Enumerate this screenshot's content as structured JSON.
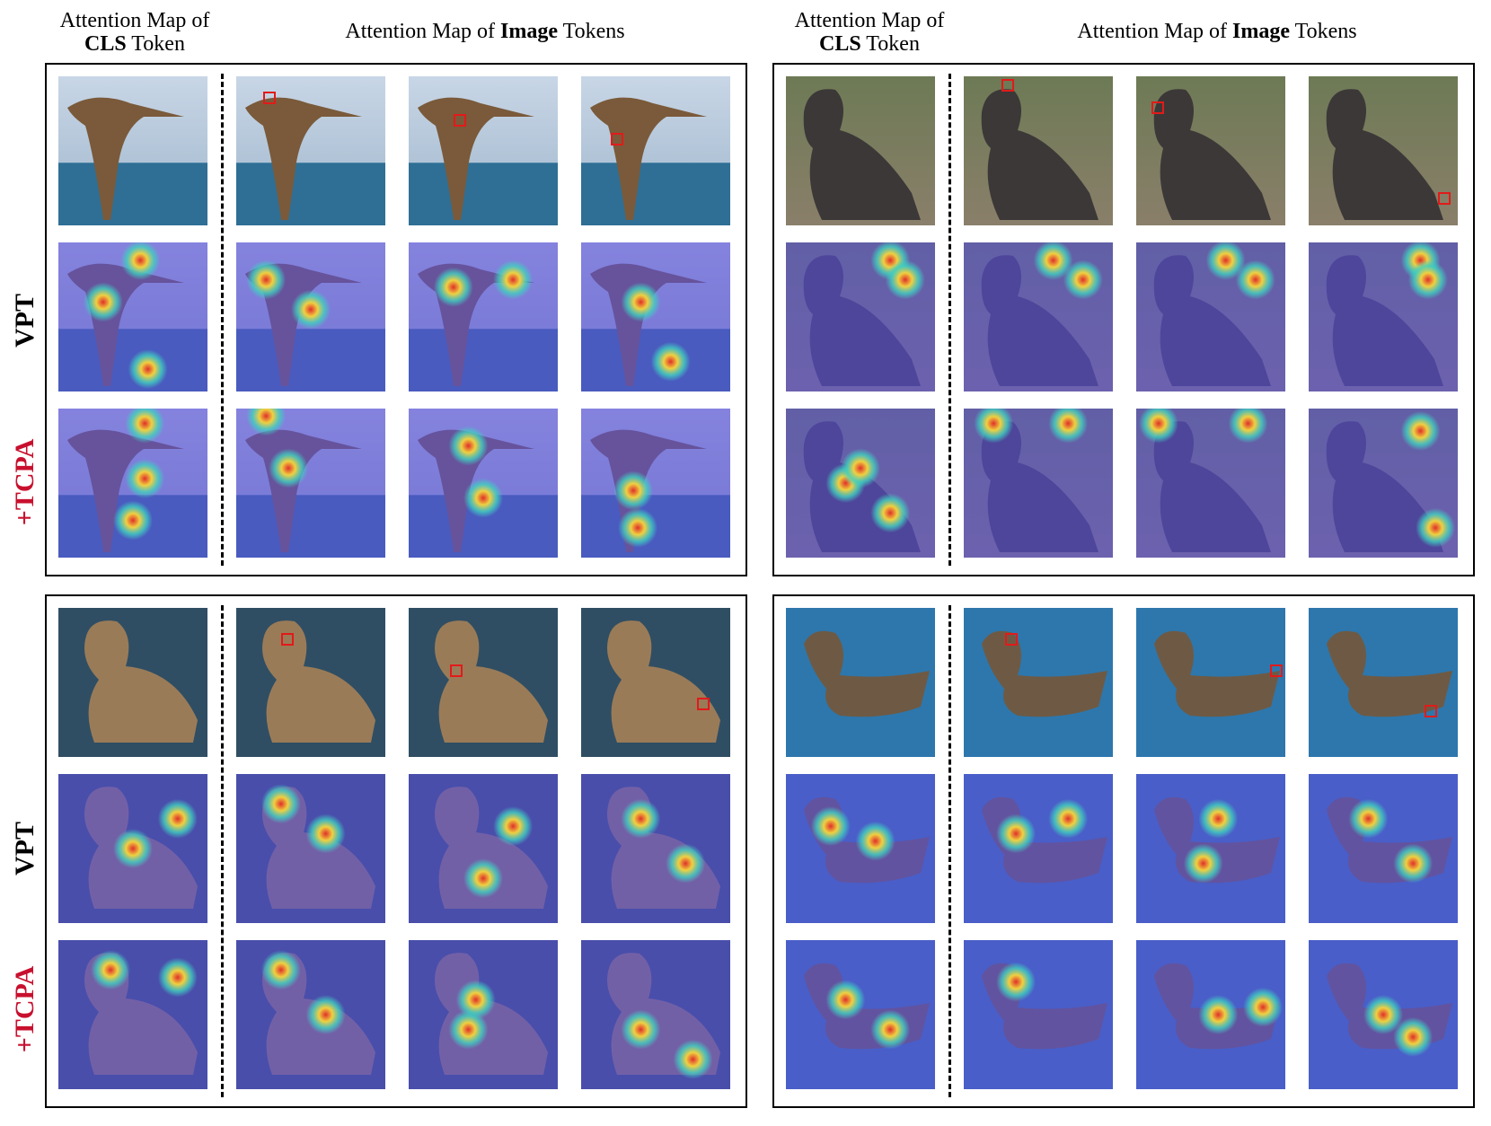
{
  "headers": {
    "cls_prefix": "Attention Map of",
    "cls_bold": "CLS",
    "cls_suffix": " Token",
    "image_prefix": "Attention Map of ",
    "image_bold": "Image",
    "image_suffix": " Tokens"
  },
  "row_labels": {
    "vpt": "VPT",
    "tcpa": "+TCPA"
  },
  "colors": {
    "tcpa_label": "#c8102e",
    "selection_box": "#e21a1a",
    "heatmap_base": "#5a4fd8",
    "heatmap_hot": "#e0302a"
  },
  "panels": [
    {
      "scene": "flying-albatross-over-sea",
      "rows": [
        "original",
        "vpt-attention",
        "tcpa-attention"
      ],
      "columns": [
        "cls-token",
        "image-token-1",
        "image-token-2",
        "image-token-3"
      ]
    },
    {
      "scene": "albatross-standing-in-grass",
      "rows": [
        "original",
        "vpt-attention",
        "tcpa-attention"
      ],
      "columns": [
        "cls-token",
        "image-token-1",
        "image-token-2",
        "image-token-3"
      ]
    },
    {
      "scene": "albatross-floating-on-water",
      "rows": [
        "original",
        "vpt-attention",
        "tcpa-attention"
      ],
      "columns": [
        "cls-token",
        "image-token-1",
        "image-token-2",
        "image-token-3"
      ]
    },
    {
      "scene": "albatross-swimming-blue-water",
      "rows": [
        "original",
        "vpt-attention",
        "tcpa-attention"
      ],
      "columns": [
        "cls-token",
        "image-token-1",
        "image-token-2",
        "image-token-3"
      ]
    }
  ]
}
